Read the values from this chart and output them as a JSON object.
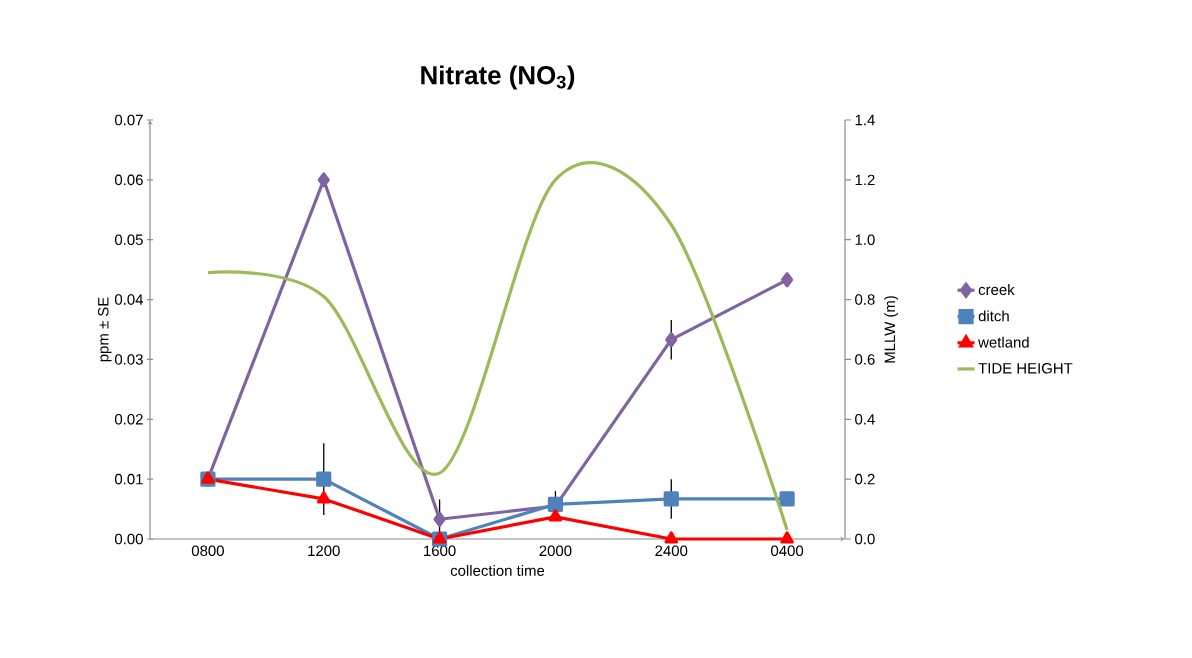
{
  "chart_data": {
    "type": "line",
    "title": "Nitrate (NO$_{3}$)",
    "xlabel": "collection time",
    "ylabel": "ppm ± SE",
    "y2label": "MLLW (m)",
    "categories": [
      "0800",
      "1200",
      "1600",
      "2000",
      "2400",
      "0400"
    ],
    "series": [
      {
        "name": "creek",
        "color": "#8064a2",
        "marker": "diamond",
        "values": [
          0.01,
          0.06,
          0.0033,
          0.0055,
          0.0333,
          0.0433
        ],
        "errors": [
          null,
          null,
          0.0033,
          null,
          0.0033,
          null
        ]
      },
      {
        "name": "ditch",
        "color": "#4f81bd",
        "marker": "square",
        "values": [
          0.01,
          0.01,
          0.0,
          0.0058,
          0.0067,
          0.0067
        ],
        "errors": [
          null,
          0.006,
          null,
          0.0022,
          0.0033,
          null
        ]
      },
      {
        "name": "wetland",
        "color": "#ff0000",
        "marker": "triangle",
        "values": [
          0.01,
          0.0067,
          0.0,
          0.0037,
          0.0,
          0.0
        ]
      },
      {
        "name": "TIDE HEIGHT",
        "color": "#9bbb59",
        "marker": "none",
        "axis": "y2",
        "values": [
          0.89,
          0.81,
          0.22,
          1.2,
          1.05,
          0.03
        ]
      }
    ],
    "ylim": [
      0,
      0.07
    ],
    "yticks": [
      {
        "value": 0,
        "label": "0.00"
      },
      {
        "value": 0.01,
        "label": "0.01"
      },
      {
        "value": 0.02,
        "label": "0.02"
      },
      {
        "value": 0.03,
        "label": "0.03"
      },
      {
        "value": 0.04,
        "label": "0.04"
      },
      {
        "value": 0.05,
        "label": "0.05"
      },
      {
        "value": 0.06,
        "label": "0.06"
      },
      {
        "value": 0.07,
        "label": "0.07"
      }
    ],
    "y2lim": [
      0,
      1.4
    ],
    "y2ticks": [
      {
        "value": 0,
        "label": "0.0"
      },
      {
        "value": 0.2,
        "label": "0.2"
      },
      {
        "value": 0.4,
        "label": "0.4"
      },
      {
        "value": 0.6,
        "label": "0.6"
      },
      {
        "value": 0.8,
        "label": "0.8"
      },
      {
        "value": 1.0,
        "label": "1.0"
      },
      {
        "value": 1.2,
        "label": "1.2"
      },
      {
        "value": 1.4,
        "label": "1.4"
      }
    ],
    "grid": false,
    "legend": "right"
  }
}
